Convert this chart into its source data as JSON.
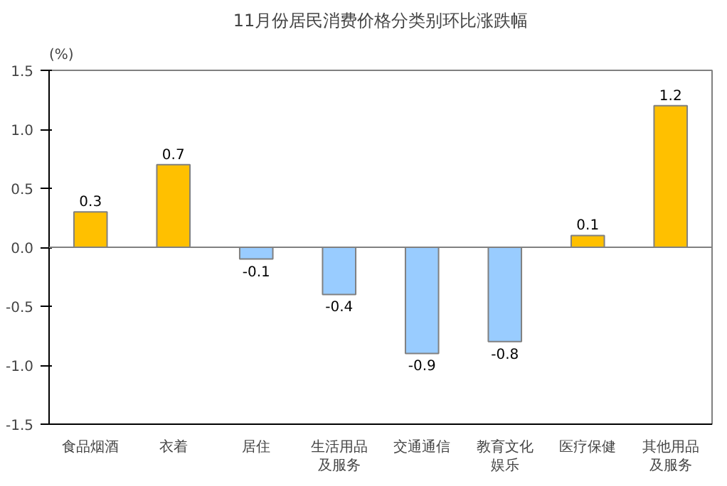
{
  "chart_data": {
    "type": "bar",
    "title": "11月份居民消费价格分类别环比涨跌幅",
    "ylabel": "(%)",
    "categories": [
      "食品烟酒",
      "衣着",
      "居住",
      "生活用品及服务",
      "交通通信",
      "教育文化娱乐",
      "医疗保健",
      "其他用品及服务"
    ],
    "values": [
      0.3,
      0.7,
      -0.1,
      -0.4,
      -0.9,
      -0.8,
      0.1,
      1.2
    ],
    "colors": [
      "#ffc000",
      "#ffc000",
      "#99ccff",
      "#99ccff",
      "#99ccff",
      "#99ccff",
      "#ffc000",
      "#ffc000"
    ],
    "ylim": [
      -1.5,
      1.5
    ],
    "yticks": [
      -1.5,
      {
        "value": -1.0,
        "label": "-1.0"
      },
      -0.5,
      {
        "value": 0.0,
        "label": "0.0"
      },
      0.5,
      {
        "value": 1.0,
        "label": "1.0"
      },
      1.5
    ],
    "ref_lines": [
      {
        "axis": "y",
        "value": 0,
        "color": "#808080"
      }
    ],
    "data_labels": true
  }
}
